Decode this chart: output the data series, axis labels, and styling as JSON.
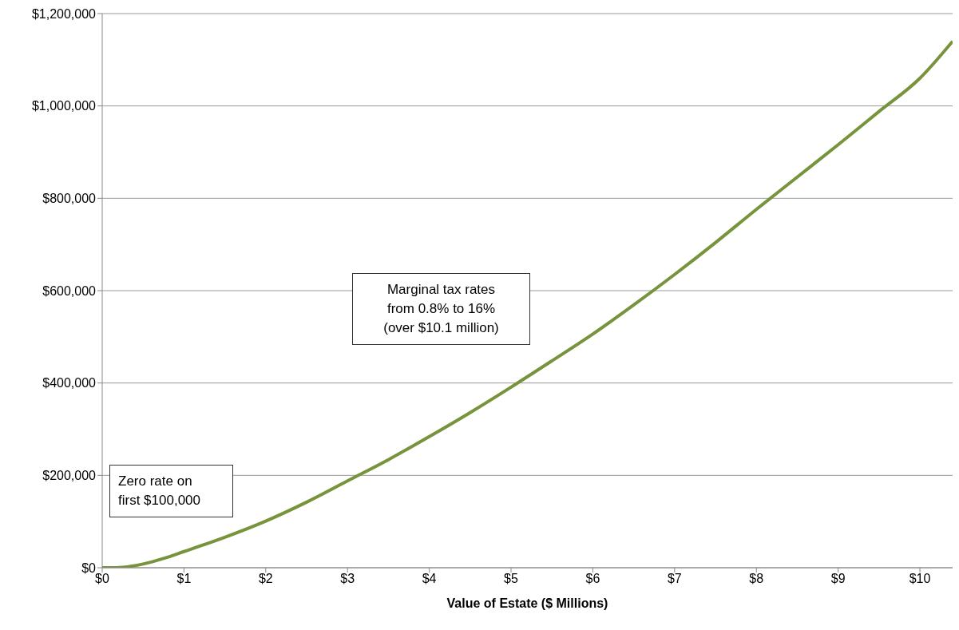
{
  "chart_data": {
    "type": "line",
    "xlabel": "Value of Estate ($ Millions)",
    "x": [
      0,
      0.1,
      0.25,
      0.5,
      0.75,
      1,
      1.5,
      2,
      2.5,
      3,
      3.5,
      4,
      4.5,
      5,
      5.5,
      6,
      6.5,
      7,
      7.5,
      8,
      8.5,
      9,
      9.5,
      10,
      10.4
    ],
    "series": [
      {
        "color": "#77933c",
        "values": [
          0,
          0,
          1000,
          8000,
          20000,
          35000,
          66000,
          101000,
          142000,
          188000,
          234000,
          284000,
          336000,
          391000,
          448000,
          506000,
          569000,
          635000,
          704000,
          776000,
          846000,
          916000,
          988000,
          1060000,
          1140000
        ]
      }
    ],
    "xlim": [
      0,
      10.4
    ],
    "xticks": [
      {
        "value": 0,
        "label": "$0"
      },
      {
        "value": 1,
        "label": "$1"
      },
      {
        "value": 2,
        "label": "$2"
      },
      {
        "value": 3,
        "label": "$3"
      },
      {
        "value": 4,
        "label": "$4"
      },
      {
        "value": 5,
        "label": "$5"
      },
      {
        "value": 6,
        "label": "$6"
      },
      {
        "value": 7,
        "label": "$7"
      },
      {
        "value": 8,
        "label": "$8"
      },
      {
        "value": 9,
        "label": "$9"
      },
      {
        "value": 10,
        "label": "$10"
      }
    ],
    "ylim": [
      0,
      1200000
    ],
    "yticks": [
      {
        "value": 0,
        "label": "$0"
      },
      {
        "value": 200000,
        "label": "$200,000"
      },
      {
        "value": 400000,
        "label": "$400,000"
      },
      {
        "value": 600000,
        "label": "$600,000"
      },
      {
        "value": 800000,
        "label": "$800,000"
      },
      {
        "value": 1000000,
        "label": "$1,000,000"
      },
      {
        "value": 1200000,
        "label": "$1,200,000"
      }
    ],
    "grid": "y",
    "legend": false,
    "marker": "none",
    "line_style": "solid",
    "annotations": [
      "Marginal tax rates\nfrom 0.8% to 16%\n(over $10.1 million)",
      "Zero rate on\nfirst $100,000"
    ]
  }
}
